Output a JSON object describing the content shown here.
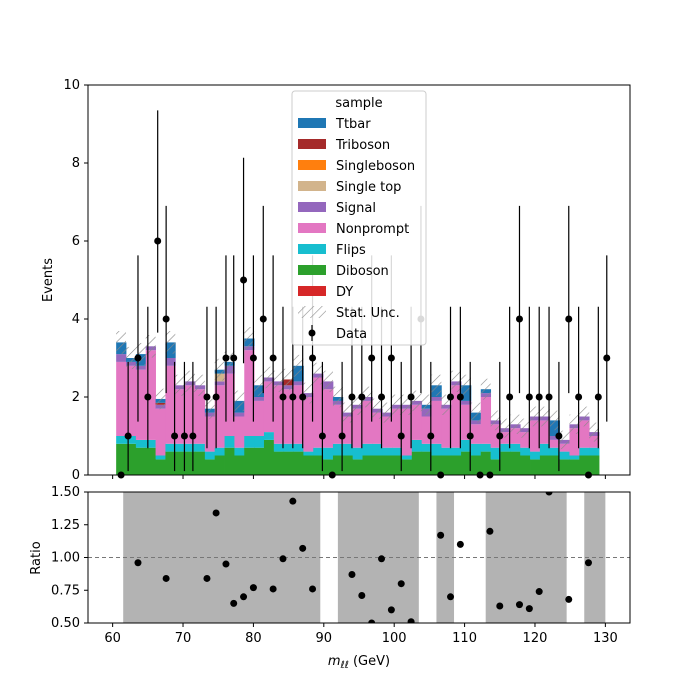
{
  "chart_data": {
    "type": "stacked-histogram-with-ratio",
    "top_panel": {
      "ylabel": "Events",
      "ylim": [
        0,
        10
      ],
      "yticks": [
        "0",
        "2",
        "4",
        "6",
        "8",
        "10"
      ],
      "legend_title": "sample",
      "legend_placement": "top-center",
      "stat_unc_label": "Stat. Unc.",
      "data_label": "Data"
    },
    "ratio_panel": {
      "ylabel": "Ratio",
      "ylim": [
        0.5,
        1.5
      ],
      "yticks": [
        "0.50",
        "0.75",
        "1.00",
        "1.25",
        "1.50"
      ],
      "reference_line": 1.0
    },
    "xlabel": "m_{ℓℓ} (GeV)",
    "xlabel_main": "m",
    "xlabel_sub": "ℓℓ",
    "xlabel_unit": " (GeV)",
    "xlim": [
      56.5,
      133.5
    ],
    "xticks": [
      "60",
      "70",
      "80",
      "90",
      "100",
      "110",
      "120",
      "130"
    ],
    "bins": {
      "start": 60.5,
      "width": 1.4,
      "count": 49
    },
    "series": [
      {
        "name": "DY",
        "color": "#d62728"
      },
      {
        "name": "Diboson",
        "color": "#2ca02c"
      },
      {
        "name": "Flips",
        "color": "#17becf"
      },
      {
        "name": "Nonprompt",
        "color": "#e377c2"
      },
      {
        "name": "Signal",
        "color": "#9467bd"
      },
      {
        "name": "Single top",
        "color": "#d2b48c"
      },
      {
        "name": "Singleboson",
        "color": "#ff7f0e"
      },
      {
        "name": "Triboson",
        "color": "#a52a2a"
      },
      {
        "name": "Ttbar",
        "color": "#1f77b4"
      }
    ],
    "legend_order": [
      "Ttbar",
      "Triboson",
      "Singleboson",
      "Single top",
      "Signal",
      "Nonprompt",
      "Flips",
      "Diboson",
      "DY"
    ],
    "components": {
      "Diboson": [
        0.8,
        0.8,
        0.7,
        0.7,
        0.4,
        0.6,
        0.6,
        0.6,
        0.6,
        0.4,
        0.5,
        0.7,
        0.5,
        0.7,
        0.7,
        0.9,
        0.6,
        0.6,
        0.6,
        0.5,
        0.5,
        0.4,
        0.5,
        0.5,
        0.4,
        0.5,
        0.5,
        0.5,
        0.5,
        0.4,
        0.6,
        0.6,
        0.5,
        0.5,
        0.5,
        0.6,
        0.5,
        0.6,
        0.4,
        0.6,
        0.6,
        0.5,
        0.4,
        0.5,
        0.5,
        0.4,
        0.4,
        0.5,
        0.5
      ],
      "Flips": [
        0.2,
        0.2,
        0.2,
        0.2,
        0.1,
        0.2,
        0.2,
        0.2,
        0.2,
        0.2,
        0.2,
        0.3,
        0.2,
        0.3,
        0.3,
        0.2,
        0.2,
        0.2,
        0.2,
        0.1,
        0.2,
        0.3,
        0.3,
        0.3,
        0.3,
        0.3,
        0.3,
        0.2,
        0.2,
        0.1,
        0.3,
        0.2,
        0.3,
        0.2,
        0.2,
        0.3,
        0.3,
        0.2,
        0.3,
        0.2,
        0.2,
        0.2,
        0.2,
        0.3,
        0.2,
        0.2,
        0.1,
        0.2,
        0.2
      ],
      "Nonprompt": [
        1.9,
        1.8,
        1.8,
        2.3,
        1.2,
        2.0,
        1.4,
        1.5,
        1.4,
        0.9,
        1.6,
        1.6,
        0.8,
        2.2,
        0.9,
        1.3,
        1.5,
        1.4,
        1.5,
        1.4,
        1.8,
        1.5,
        1.0,
        0.7,
        1.0,
        1.1,
        0.8,
        0.8,
        1.0,
        1.2,
        0.9,
        0.7,
        1.1,
        1.0,
        1.6,
        0.9,
        0.5,
        1.2,
        0.6,
        0.3,
        0.4,
        0.4,
        0.8,
        0.6,
        0.2,
        0.2,
        0.7,
        0.7,
        0.3
      ],
      "Signal": [
        0.2,
        0.1,
        0.1,
        0.1,
        0.1,
        0.2,
        0.1,
        0.1,
        0.1,
        0.1,
        0.1,
        0.2,
        0.1,
        0.1,
        0.1,
        0.1,
        0.1,
        0.1,
        0.1,
        0.1,
        0.1,
        0.2,
        0.1,
        0.1,
        0.1,
        0.1,
        0.1,
        0.1,
        0.1,
        0.1,
        0.1,
        0.2,
        0.1,
        0.1,
        0.1,
        0.1,
        0.1,
        0.1,
        0.1,
        0.1,
        0.1,
        0.1,
        0.1,
        0.1,
        0.1,
        0.1,
        0.1,
        0.1,
        0.1
      ],
      "Single top": [
        0.0,
        0.0,
        0.0,
        0.0,
        0.0,
        0.0,
        0.0,
        0.0,
        0.0,
        0.0,
        0.2,
        0.0,
        0.0,
        0.0,
        0.0,
        0.0,
        0.0,
        0.0,
        0.0,
        0.0,
        0.0,
        0.0,
        0.0,
        0.0,
        0.0,
        0.0,
        0.0,
        0.0,
        0.0,
        0.0,
        0.0,
        0.0,
        0.0,
        0.0,
        0.0,
        0.0,
        0.0,
        0.0,
        0.0,
        0.0,
        0.0,
        0.0,
        0.0,
        0.0,
        0.0,
        0.0,
        0.0,
        0.0,
        0.0
      ],
      "Singleboson": [
        0.0,
        0.0,
        0.0,
        0.0,
        0.0,
        0.0,
        0.0,
        0.0,
        0.0,
        0.0,
        0.0,
        0.0,
        0.0,
        0.0,
        0.0,
        0.0,
        0.0,
        0.0,
        0.0,
        0.0,
        0.0,
        0.0,
        0.0,
        0.0,
        0.0,
        0.0,
        0.0,
        0.0,
        0.0,
        0.0,
        0.0,
        0.0,
        0.0,
        0.0,
        0.0,
        0.0,
        0.0,
        0.0,
        0.0,
        0.0,
        0.0,
        0.0,
        0.0,
        0.0,
        0.0,
        0.0,
        0.0,
        0.0,
        0.0
      ],
      "Triboson": [
        0.0,
        0.0,
        0.0,
        0.0,
        0.05,
        0.0,
        0.0,
        0.0,
        0.0,
        0.0,
        0.0,
        0.0,
        0.0,
        0.0,
        0.0,
        0.0,
        0.0,
        0.15,
        0.0,
        0.0,
        0.0,
        0.0,
        0.0,
        0.0,
        0.0,
        0.0,
        0.0,
        0.0,
        0.0,
        0.0,
        0.0,
        0.0,
        0.0,
        0.0,
        0.0,
        0.0,
        0.0,
        0.0,
        0.0,
        0.0,
        0.0,
        0.0,
        0.0,
        0.0,
        0.0,
        0.0,
        0.0,
        0.0,
        0.0
      ],
      "Ttbar": [
        0.3,
        0.1,
        0.3,
        0.0,
        0.1,
        0.4,
        0.0,
        0.0,
        0.0,
        0.1,
        0.1,
        0.1,
        0.3,
        0.2,
        0.3,
        0.0,
        0.0,
        0.0,
        0.4,
        0.0,
        0.0,
        0.0,
        0.1,
        0.0,
        0.0,
        0.0,
        0.0,
        0.0,
        0.0,
        0.0,
        0.0,
        0.1,
        0.3,
        0.0,
        0.0,
        0.4,
        0.2,
        0.1,
        0.0,
        0.0,
        0.0,
        0.0,
        0.0,
        0.0,
        0.4,
        0.0,
        0.0,
        0.0,
        0.0
      ],
      "DY": [
        0.0,
        0.0,
        0.0,
        0.0,
        0.0,
        0.0,
        0.0,
        0.0,
        0.0,
        0.0,
        0.0,
        0.0,
        0.0,
        0.0,
        0.0,
        0.0,
        0.0,
        0.0,
        0.0,
        0.0,
        0.0,
        0.0,
        0.0,
        0.0,
        0.0,
        0.0,
        0.0,
        0.0,
        0.0,
        0.0,
        0.0,
        0.0,
        0.0,
        0.0,
        0.0,
        0.0,
        0.0,
        0.0,
        0.0,
        0.0,
        0.0,
        0.0,
        0.0,
        0.0,
        0.0,
        0.0,
        0.0,
        0.0,
        0.0
      ]
    },
    "data": [
      {
        "x": 61.2,
        "y": 0
      },
      {
        "x": 62.2,
        "y": 1
      },
      {
        "x": 63.6,
        "y": 3
      },
      {
        "x": 65.0,
        "y": 2
      },
      {
        "x": 66.4,
        "y": 6
      },
      {
        "x": 67.6,
        "y": 4
      },
      {
        "x": 68.8,
        "y": 1
      },
      {
        "x": 70.2,
        "y": 1
      },
      {
        "x": 71.4,
        "y": 1
      },
      {
        "x": 73.4,
        "y": 2
      },
      {
        "x": 74.7,
        "y": 2
      },
      {
        "x": 76.1,
        "y": 3
      },
      {
        "x": 77.2,
        "y": 3
      },
      {
        "x": 78.6,
        "y": 5
      },
      {
        "x": 80.0,
        "y": 3
      },
      {
        "x": 81.4,
        "y": 4
      },
      {
        "x": 82.8,
        "y": 3
      },
      {
        "x": 84.2,
        "y": 2
      },
      {
        "x": 85.6,
        "y": 2
      },
      {
        "x": 87.0,
        "y": 2
      },
      {
        "x": 88.4,
        "y": 3
      },
      {
        "x": 89.8,
        "y": 1
      },
      {
        "x": 91.2,
        "y": 0
      },
      {
        "x": 92.6,
        "y": 1
      },
      {
        "x": 94.0,
        "y": 2
      },
      {
        "x": 95.4,
        "y": 2
      },
      {
        "x": 96.8,
        "y": 3
      },
      {
        "x": 98.2,
        "y": 2
      },
      {
        "x": 99.6,
        "y": 3
      },
      {
        "x": 101.0,
        "y": 1
      },
      {
        "x": 102.4,
        "y": 2
      },
      {
        "x": 103.8,
        "y": 4
      },
      {
        "x": 105.2,
        "y": 1
      },
      {
        "x": 106.6,
        "y": 0
      },
      {
        "x": 108.0,
        "y": 2
      },
      {
        "x": 109.4,
        "y": 2
      },
      {
        "x": 110.8,
        "y": 1
      },
      {
        "x": 112.2,
        "y": 0
      },
      {
        "x": 113.6,
        "y": 0
      },
      {
        "x": 115.0,
        "y": 1
      },
      {
        "x": 116.4,
        "y": 2
      },
      {
        "x": 117.8,
        "y": 4
      },
      {
        "x": 119.2,
        "y": 2
      },
      {
        "x": 120.6,
        "y": 2
      },
      {
        "x": 122.0,
        "y": 2
      },
      {
        "x": 123.4,
        "y": 1
      },
      {
        "x": 124.8,
        "y": 4
      },
      {
        "x": 126.2,
        "y": 2
      },
      {
        "x": 127.6,
        "y": 0
      },
      {
        "x": 129.0,
        "y": 2
      },
      {
        "x": 130.2,
        "y": 3
      }
    ],
    "ratio_bands": [
      {
        "from": 61.5,
        "to": 89.5
      },
      {
        "from": 92.0,
        "to": 103.5
      },
      {
        "from": 106.0,
        "to": 108.5
      },
      {
        "from": 113.0,
        "to": 124.5
      },
      {
        "from": 127.0,
        "to": 130.0
      }
    ],
    "ratio_points": [
      {
        "x": 63.6,
        "y": 0.96
      },
      {
        "x": 67.6,
        "y": 0.84
      },
      {
        "x": 73.4,
        "y": 0.84
      },
      {
        "x": 74.7,
        "y": 1.34
      },
      {
        "x": 76.1,
        "y": 0.95
      },
      {
        "x": 77.2,
        "y": 0.65
      },
      {
        "x": 78.6,
        "y": 0.7
      },
      {
        "x": 80.0,
        "y": 0.77
      },
      {
        "x": 82.8,
        "y": 0.76
      },
      {
        "x": 84.2,
        "y": 0.99
      },
      {
        "x": 85.6,
        "y": 1.43
      },
      {
        "x": 87.0,
        "y": 1.07
      },
      {
        "x": 88.4,
        "y": 0.76
      },
      {
        "x": 94.0,
        "y": 0.87
      },
      {
        "x": 95.4,
        "y": 0.71
      },
      {
        "x": 96.8,
        "y": 0.5
      },
      {
        "x": 98.2,
        "y": 0.99
      },
      {
        "x": 99.6,
        "y": 0.6
      },
      {
        "x": 101.0,
        "y": 0.8
      },
      {
        "x": 102.4,
        "y": 0.51
      },
      {
        "x": 106.6,
        "y": 1.17
      },
      {
        "x": 108.0,
        "y": 0.7
      },
      {
        "x": 109.4,
        "y": 1.1
      },
      {
        "x": 113.6,
        "y": 1.2
      },
      {
        "x": 115.0,
        "y": 0.63
      },
      {
        "x": 117.8,
        "y": 0.64
      },
      {
        "x": 119.2,
        "y": 0.61
      },
      {
        "x": 120.6,
        "y": 0.74
      },
      {
        "x": 122.0,
        "y": 1.5
      },
      {
        "x": 124.8,
        "y": 0.68
      },
      {
        "x": 127.6,
        "y": 0.96
      }
    ]
  }
}
